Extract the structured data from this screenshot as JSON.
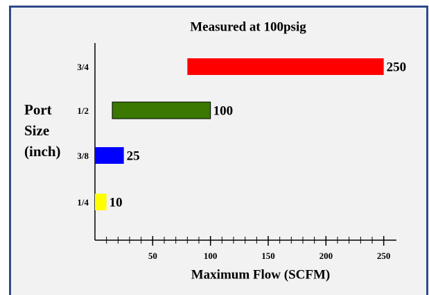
{
  "chart_data": {
    "type": "floating-bar",
    "title": "Measured at 100psig",
    "xlabel": "Maximum Flow (SCFM)",
    "ylabel": [
      "Port",
      "Size",
      "(inch)"
    ],
    "categories": [
      "1/4",
      "3/8",
      "1/2",
      "3/4"
    ],
    "starts": [
      0,
      0,
      15,
      80
    ],
    "values": [
      10,
      25,
      100,
      250
    ],
    "colors": [
      "#ffff00",
      "#0000ff",
      "#3a7800",
      "#ff0000"
    ],
    "xlim": [
      0,
      261
    ],
    "xticks": [
      50,
      100,
      150,
      200,
      250
    ],
    "xminorticks": [
      10,
      20,
      30,
      40,
      50,
      60,
      70,
      80,
      90,
      100,
      110,
      120,
      130,
      140,
      150,
      160,
      170,
      180,
      190,
      200,
      210,
      220,
      230,
      240,
      250
    ]
  }
}
